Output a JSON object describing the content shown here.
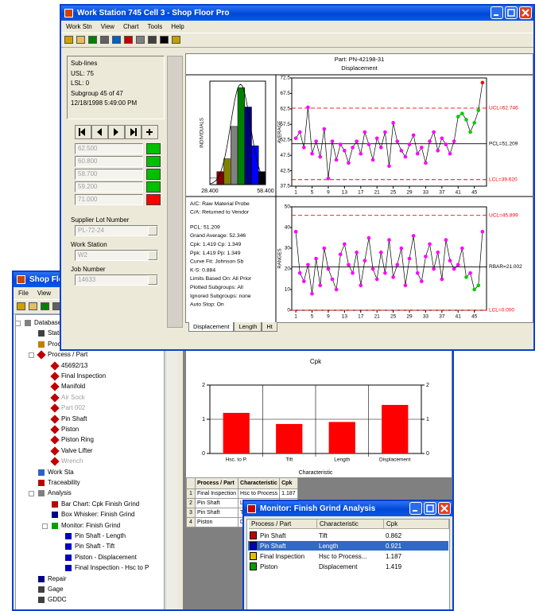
{
  "main_window": {
    "title": "Work Station 745 Cell 3 - Shop Floor Pro",
    "menu": [
      "Work Stn",
      "View",
      "Chart",
      "Tools",
      "Help"
    ],
    "info": [
      "Sub-lines",
      "USL: 75",
      "LSL: 0",
      "Subgroup 45 of 47",
      "12/18/1998 5:49:00 PM"
    ],
    "readings": [
      {
        "text": "62.500",
        "color": "#00c000"
      },
      {
        "text": "60.800",
        "color": "#00c000"
      },
      {
        "text": "58.700",
        "color": "#00c000"
      },
      {
        "text": "59.200",
        "color": "#00c000"
      },
      {
        "text": "71.000",
        "color": "#ff0000"
      }
    ],
    "fields": [
      {
        "label": "Supplier Lot Number",
        "value": "PL-72-24"
      },
      {
        "label": "Work Station",
        "value": "W2"
      },
      {
        "label": "Job Number",
        "value": "14633"
      }
    ],
    "chart": {
      "part": "Part: PN-42198-31",
      "characteristic": "Displacement",
      "xlim": [
        0,
        48
      ],
      "xticks": [
        1,
        5,
        9,
        13,
        17,
        21,
        25,
        29,
        33,
        37,
        41,
        45
      ],
      "histogram": {
        "y_label": "INDIVIDUALS",
        "x_labels": [
          "28.400",
          "58.400"
        ],
        "ylim": [
          0,
          16
        ],
        "values": [
          1,
          2,
          4,
          9,
          15,
          12,
          6,
          2
        ],
        "colors": [
          "#ffffff",
          "#800000",
          "#808000",
          "#808080",
          "#008000",
          "#000080",
          "#0000ff",
          "#000000"
        ]
      },
      "averages": {
        "y_label": "AVERAGE",
        "ylim": [
          37.5,
          72.5
        ],
        "yticks": [
          37.5,
          42.5,
          47.5,
          52.5,
          57.5,
          62.5,
          67.5,
          72.5
        ],
        "values": [
          53,
          55,
          50,
          63,
          48,
          52,
          47,
          56,
          40,
          52,
          46,
          51,
          49,
          45,
          50,
          52,
          48,
          55,
          51,
          46,
          53,
          50,
          55,
          44,
          58,
          52,
          49,
          47,
          51,
          54,
          48,
          50,
          45,
          52,
          55,
          49,
          53,
          51,
          48,
          52,
          60,
          61,
          59,
          55,
          58,
          62,
          71
        ],
        "point_colors": [
          "#f0f",
          "#f0f",
          "#f0f",
          "#f0f",
          "#f0f",
          "#f0f",
          "#f0f",
          "#f0f",
          "#f0f",
          "#f0f",
          "#f0f",
          "#f0f",
          "#f0f",
          "#f0f",
          "#f0f",
          "#f0f",
          "#f0f",
          "#f0f",
          "#f0f",
          "#f0f",
          "#f0f",
          "#f0f",
          "#f0f",
          "#f0f",
          "#f0f",
          "#f0f",
          "#f0f",
          "#f0f",
          "#f0f",
          "#f0f",
          "#f0f",
          "#f0f",
          "#f0f",
          "#f0f",
          "#f0f",
          "#f0f",
          "#f0f",
          "#f0f",
          "#f0f",
          "#f0f",
          "#0c0",
          "#0c0",
          "#0c0",
          "#0c0",
          "#0c0",
          "#0c0",
          "#f00"
        ],
        "limits": [
          {
            "label": "UCL=62.746",
            "value": 62.746,
            "color": "#ff0000",
            "dashed": true
          },
          {
            "label": "PCL=51.209",
            "value": 51.209,
            "color": "#000000",
            "dashed": false
          },
          {
            "label": "LCL=39.620",
            "value": 39.62,
            "color": "#ff0000",
            "dashed": true
          }
        ]
      },
      "ranges": {
        "y_label": "RANGES",
        "ylim": [
          0,
          50
        ],
        "yticks": [
          0,
          10,
          20,
          30,
          40,
          50
        ],
        "values": [
          38,
          18,
          14,
          22,
          8,
          25,
          12,
          30,
          20,
          15,
          10,
          27,
          32,
          22,
          18,
          28,
          12,
          24,
          35,
          20,
          15,
          28,
          18,
          34,
          16,
          22,
          30,
          12,
          25,
          36,
          18,
          14,
          26,
          32,
          20,
          28,
          15,
          34,
          24,
          20,
          22,
          30,
          16,
          18,
          10,
          12,
          38
        ],
        "point_colors": [
          "#f0f",
          "#f0f",
          "#f0f",
          "#f0f",
          "#f0f",
          "#f0f",
          "#f0f",
          "#f0f",
          "#f0f",
          "#f0f",
          "#f0f",
          "#f0f",
          "#f0f",
          "#f0f",
          "#f0f",
          "#f0f",
          "#f0f",
          "#f0f",
          "#f0f",
          "#f0f",
          "#f0f",
          "#f0f",
          "#f0f",
          "#f0f",
          "#f0f",
          "#f0f",
          "#f0f",
          "#f0f",
          "#f0f",
          "#f0f",
          "#f0f",
          "#f0f",
          "#f0f",
          "#f0f",
          "#f0f",
          "#f0f",
          "#f0f",
          "#f0f",
          "#f0f",
          "#f0f",
          "#f0f",
          "#f0f",
          "#0c0",
          "#f0f",
          "#0c0",
          "#0c0",
          "#f0f"
        ],
        "limits": [
          {
            "label": "UCL=45.899",
            "value": 45.899,
            "color": "#ff0000",
            "dashed": true
          },
          {
            "label": "RBAR=21.002",
            "value": 21.002,
            "color": "#000000",
            "dashed": false
          },
          {
            "label": "LCL=0.000",
            "value": 0,
            "color": "#ff0000",
            "dashed": true
          }
        ]
      },
      "stats": [
        "A/C: Raw Material Probe",
        "C/A: Returned to Vendor",
        "PCL: 51.209",
        "Grand Average: 52.346",
        "Cpk: 1.419 Cp: 1.349",
        "Ppk: 1.419 Pp: 1.349",
        "Curve Fit: Johnson Sb",
        "K-S: 0.884",
        "Limits Based On: All Prior",
        "Plotted Subgroups: All",
        "Ignored Subgroups: none",
        "Auto Stop: On"
      ]
    },
    "tabs": [
      "Displacement",
      "Length",
      "Ht"
    ]
  },
  "back_window": {
    "title": "Shop Floor Pro",
    "menu": [
      "File",
      "View"
    ],
    "tree": [
      {
        "label": "Database",
        "icon": "#808080",
        "children": [
          {
            "label": "Stations",
            "icon": "#404040"
          },
          {
            "label": "Processes",
            "icon": "#c08000"
          },
          {
            "label": "Process / Part",
            "icon": "#c00000",
            "children": [
              {
                "label": "45692/13",
                "icon": "#c00000"
              },
              {
                "label": "Final Inspection",
                "icon": "#c00000"
              },
              {
                "label": "Manifold",
                "icon": "#c00000"
              },
              {
                "label": "Air Sock",
                "icon": "#c00000",
                "disabled": true
              },
              {
                "label": "Part 002",
                "icon": "#c00000",
                "disabled": true
              },
              {
                "label": "Pin Shaft",
                "icon": "#c00000"
              },
              {
                "label": "Piston",
                "icon": "#c00000"
              },
              {
                "label": "Piston Ring",
                "icon": "#c00000"
              },
              {
                "label": "Valve Lifter",
                "icon": "#c00000"
              },
              {
                "label": "Wrench",
                "icon": "#c00000",
                "disabled": true
              }
            ]
          },
          {
            "label": "Work Sta",
            "icon": "#3060c0"
          },
          {
            "label": "Traceability",
            "icon": "#c00000"
          },
          {
            "label": "Analysis",
            "icon": "#808080",
            "children": [
              {
                "label": "Bar Chart: Cpk Finish Grind",
                "icon": "#c00000"
              },
              {
                "label": "Box Whisker: Finish Grind",
                "icon": "#000080"
              },
              {
                "label": "Monitor: Finish Grind",
                "icon": "#00a000",
                "children": [
                  {
                    "label": "Pin Shaft - Length",
                    "icon": "#0000c0"
                  },
                  {
                    "label": "Pin Shaft - Tift",
                    "icon": "#0000c0"
                  },
                  {
                    "label": "Piston - Displacement",
                    "icon": "#0000c0"
                  },
                  {
                    "label": "Final Inspection - Hsc to P",
                    "icon": "#0000c0"
                  }
                ]
              }
            ]
          },
          {
            "label": "Repair",
            "icon": "#000080"
          },
          {
            "label": "Gage",
            "icon": "#404040"
          },
          {
            "label": "GDDC",
            "icon": "#404040"
          }
        ]
      }
    ],
    "cpk_chart": {
      "type": "bar",
      "title": "Cpk",
      "categories": [
        "Hsc. to P.",
        "Tift",
        "Length",
        "Displacement"
      ],
      "values": [
        1.187,
        0.862,
        0.921,
        1.419
      ],
      "color": "#ff0000",
      "ylim": [
        0,
        2
      ],
      "yticks": [
        0,
        1,
        2
      ],
      "x_label": "Characteristic"
    },
    "table": {
      "headers": [
        "Process / Part",
        "Characteristic",
        "Cpk"
      ],
      "rows": [
        [
          "1",
          "Final Inspection",
          "Hsc to Process",
          "1.187"
        ],
        [
          "2",
          "Pin Shaft",
          "Length",
          "0.921"
        ],
        [
          "3",
          "Pin Shaft",
          "Tift",
          "0.862"
        ],
        [
          "4",
          "Piston",
          "Displacement",
          "1.419"
        ]
      ]
    }
  },
  "monitor": {
    "title": "Monitor: Finish Grind Analysis",
    "headers": [
      "Process / Part",
      "Characteristic",
      "Cpk"
    ],
    "rows": [
      {
        "icon": "#c00000",
        "part": "Pin Shaft",
        "characteristic": "Tift",
        "cpk": "0.862"
      },
      {
        "icon": "#0000c0",
        "part": "Pin Shaft",
        "characteristic": "Length",
        "cpk": "0.921",
        "selected": true
      },
      {
        "icon": "#e0c000",
        "part": "Final Inspection",
        "characteristic": "Hsc to Process...",
        "cpk": "1.187"
      },
      {
        "icon": "#00a000",
        "part": "Piston",
        "characteristic": "Displacement",
        "cpk": "1.419"
      }
    ]
  }
}
